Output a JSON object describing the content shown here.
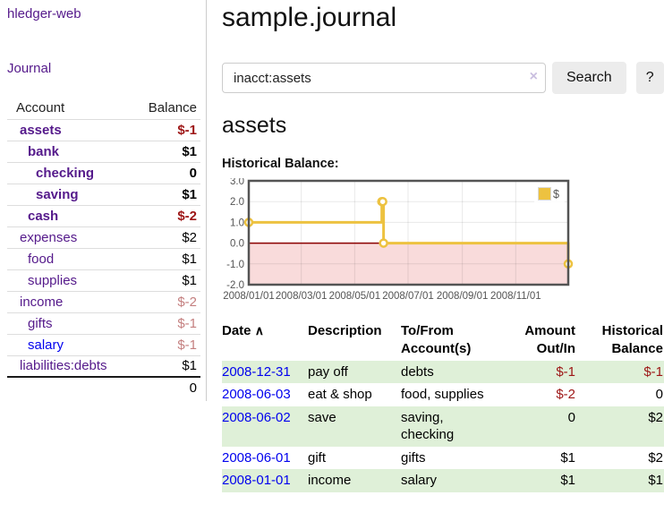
{
  "brand": "hledger-web",
  "nav": {
    "journal": "Journal"
  },
  "sidebar": {
    "header": {
      "account": "Account",
      "balance": "Balance"
    },
    "accounts": [
      {
        "name": "assets",
        "indent": 0,
        "bold": true,
        "link_color": "purple",
        "balance": "$-1",
        "balance_class": "neg-strong"
      },
      {
        "name": "bank",
        "indent": 1,
        "bold": true,
        "link_color": "purple",
        "balance": "$1",
        "balance_class": "pos"
      },
      {
        "name": "checking",
        "indent": 2,
        "bold": true,
        "link_color": "purple",
        "balance": "0",
        "balance_class": "pos"
      },
      {
        "name": "saving",
        "indent": 2,
        "bold": true,
        "link_color": "purple",
        "balance": "$1",
        "balance_class": "pos"
      },
      {
        "name": "cash",
        "indent": 1,
        "bold": true,
        "link_color": "purple",
        "balance": "$-2",
        "balance_class": "neg-strong"
      },
      {
        "name": "expenses",
        "indent": 0,
        "bold": false,
        "link_color": "purple",
        "balance": "$2",
        "balance_class": "pos"
      },
      {
        "name": "food",
        "indent": 1,
        "bold": false,
        "link_color": "purple",
        "balance": "$1",
        "balance_class": "pos"
      },
      {
        "name": "supplies",
        "indent": 1,
        "bold": false,
        "link_color": "purple",
        "balance": "$1",
        "balance_class": "pos"
      },
      {
        "name": "income",
        "indent": 0,
        "bold": false,
        "link_color": "purple",
        "balance": "$-2",
        "balance_class": "neg-soft"
      },
      {
        "name": "gifts",
        "indent": 1,
        "bold": false,
        "link_color": "purple",
        "balance": "$-1",
        "balance_class": "neg-soft"
      },
      {
        "name": "salary",
        "indent": 1,
        "bold": false,
        "link_color": "blue",
        "balance": "$-1",
        "balance_class": "neg-soft"
      },
      {
        "name": "liabilities:debts",
        "indent": 0,
        "bold": false,
        "link_color": "purple",
        "balance": "$1",
        "balance_class": "pos"
      }
    ],
    "total": "0"
  },
  "header": {
    "title": "sample.journal"
  },
  "search": {
    "value": "inacct:assets",
    "clear_icon": "×",
    "button": "Search",
    "help": "?"
  },
  "account_page": {
    "title": "assets",
    "chart_label": "Historical Balance:"
  },
  "chart_data": {
    "type": "line",
    "title": "Historical Balance",
    "series": [
      {
        "name": "$",
        "color": "#EDC240",
        "x": [
          "2008-01-01",
          "2008-06-01",
          "2008-06-02",
          "2008-06-03",
          "2008-12-31"
        ],
        "y": [
          1,
          2,
          2,
          0,
          -1
        ]
      }
    ],
    "step": true,
    "xlim": [
      "2008-01-01",
      "2008-12-31"
    ],
    "ylim": [
      -2,
      3
    ],
    "yticks": [
      3.0,
      2.0,
      1.0,
      0.0,
      -1.0,
      -2.0
    ],
    "xticks": [
      "2008/01/01",
      "2008/03/01",
      "2008/05/01",
      "2008/07/01",
      "2008/09/01",
      "2008/11/01"
    ],
    "grid": true,
    "negative_region_fill": "#f9dbdb",
    "zero_line_color": "#8b0000",
    "legend_position": "top-right",
    "legend_label": "$"
  },
  "register": {
    "columns": [
      "Date",
      "Description",
      "To/From Account(s)",
      "Amount Out/In",
      "Historical Balance"
    ],
    "sort_icon": "∧",
    "rows": [
      {
        "date": "2008-12-31",
        "description": "pay off",
        "accounts": "debts",
        "amount": "$-1",
        "amount_neg": true,
        "balance": "$-1",
        "balance_neg": true
      },
      {
        "date": "2008-06-03",
        "description": "eat & shop",
        "accounts": "food, supplies",
        "amount": "$-2",
        "amount_neg": true,
        "balance": "0",
        "balance_neg": false
      },
      {
        "date": "2008-06-02",
        "description": "save",
        "accounts": "saving,\nchecking",
        "amount": "0",
        "amount_neg": false,
        "balance": "$2",
        "balance_neg": false
      },
      {
        "date": "2008-06-01",
        "description": "gift",
        "accounts": "gifts",
        "amount": "$1",
        "amount_neg": false,
        "balance": "$2",
        "balance_neg": false
      },
      {
        "date": "2008-01-01",
        "description": "income",
        "accounts": "salary",
        "amount": "$1",
        "amount_neg": false,
        "balance": "$1",
        "balance_neg": false
      }
    ]
  }
}
